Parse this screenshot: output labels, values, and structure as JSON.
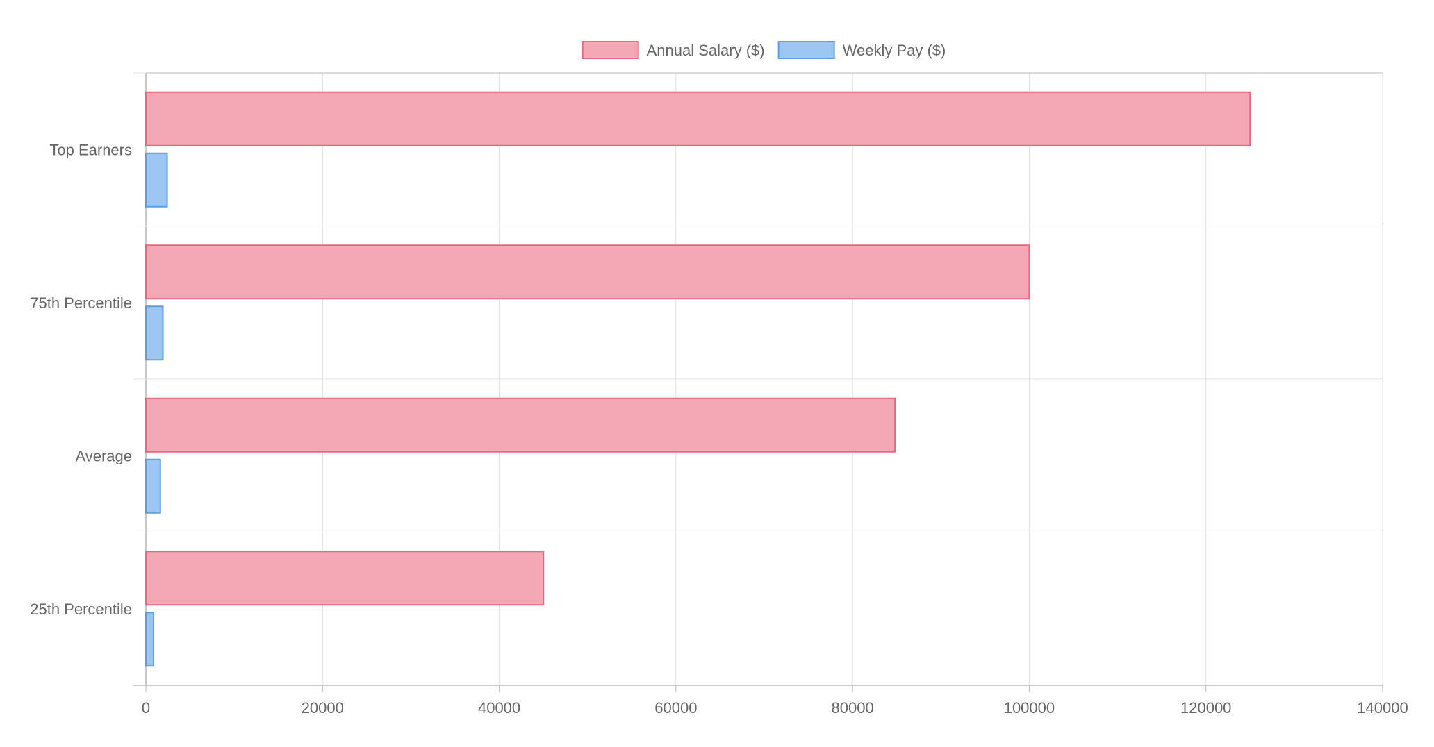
{
  "chart_data": {
    "type": "bar",
    "orientation": "horizontal",
    "title": "",
    "xlabel": "",
    "ylabel": "",
    "categories": [
      "Top Earners",
      "75th Percentile",
      "Average",
      "25th Percentile"
    ],
    "series": [
      {
        "name": "Annual Salary ($)",
        "values": [
          125000,
          100000,
          84800,
          45000
        ],
        "fill": "#f4a7b5",
        "stroke": "#e8677f"
      },
      {
        "name": "Weekly Pay ($)",
        "values": [
          2400,
          1923,
          1631,
          865
        ],
        "fill": "#9dc7f2",
        "stroke": "#5c9de4"
      }
    ],
    "xlim": [
      0,
      140000
    ],
    "xticks": [
      "0",
      "20000",
      "40000",
      "60000",
      "80000",
      "100000",
      "120000",
      "140000"
    ],
    "grid": true,
    "legend_position": "top-center"
  },
  "colors": {
    "grid": "#e0e0e0",
    "axis": "#b8b8b8",
    "text": "#666666"
  }
}
